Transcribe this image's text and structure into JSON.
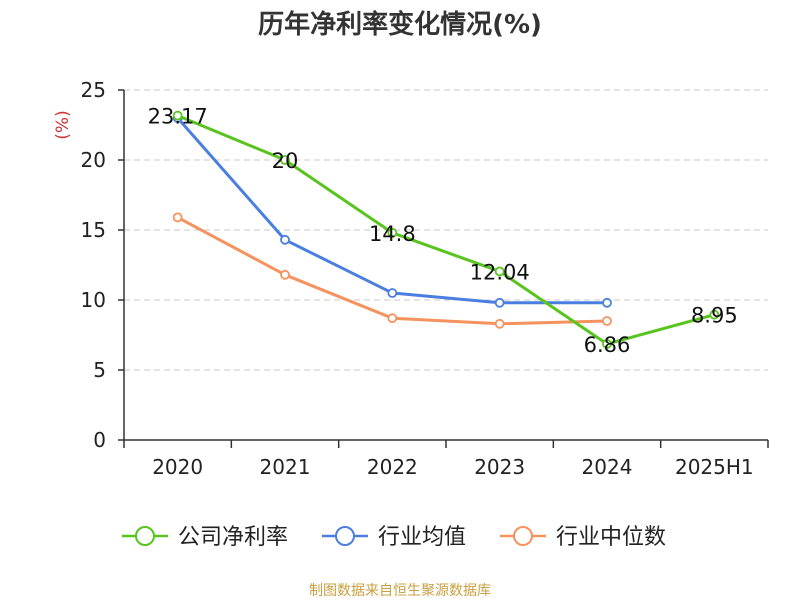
{
  "chart_data": {
    "type": "line",
    "title": "历年净利率变化情况(%)",
    "ylabel": "(%)",
    "xlabel": "",
    "categories": [
      "2020",
      "2021",
      "2022",
      "2023",
      "2024",
      "2025H1"
    ],
    "ylim": [
      0,
      25
    ],
    "yticks": [
      0,
      5,
      10,
      15,
      20,
      25
    ],
    "grid": true,
    "legend_position": "bottom",
    "series": [
      {
        "name": "公司净利率",
        "color": "#5ac41f",
        "values": [
          23.17,
          20,
          14.8,
          12.04,
          6.86,
          8.95
        ],
        "labels": [
          "23.17",
          "20",
          "14.8",
          "12.04",
          "6.86",
          "8.95"
        ]
      },
      {
        "name": "行业均值",
        "color": "#4a7ee0",
        "values": [
          23.0,
          14.3,
          10.5,
          9.8,
          9.8,
          null
        ]
      },
      {
        "name": "行业中位数",
        "color": "#f5925e",
        "values": [
          15.9,
          11.8,
          8.7,
          8.3,
          8.5,
          null
        ]
      }
    ]
  },
  "source_note": "制图数据来自恒生聚源数据库"
}
